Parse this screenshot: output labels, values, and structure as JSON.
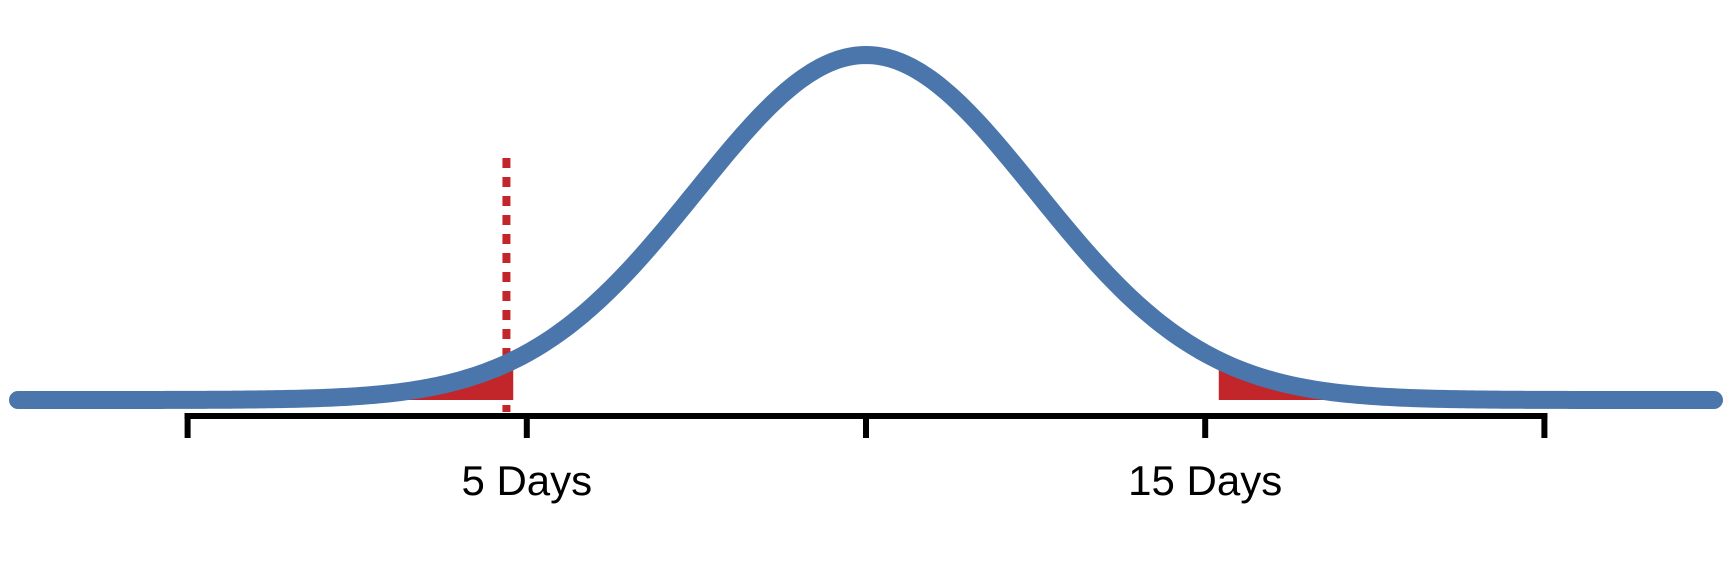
{
  "chart_data": {
    "type": "area",
    "title": "",
    "xlabel": "",
    "ylabel": "",
    "distribution": {
      "shape": "normal",
      "mean": 10,
      "sd": 2.5
    },
    "xlim": [
      -2.5,
      22.5
    ],
    "axis_ticks": [
      0,
      5,
      10,
      15,
      20
    ],
    "tick_labels": [
      {
        "x": 5,
        "label": "5 Days"
      },
      {
        "x": 15,
        "label": "15 Days"
      }
    ],
    "shaded_tails": [
      {
        "from": 2.8,
        "to": 4.8
      },
      {
        "from": 15.2,
        "to": 17.2
      }
    ],
    "reference_line": {
      "x": 4.7,
      "style": "dotted"
    },
    "grid": false,
    "legend": "none",
    "colors": {
      "curve": "#4a76ab",
      "tail_fill": "#c2262b",
      "reference_line": "#c2262b",
      "axis": "#000000"
    }
  }
}
